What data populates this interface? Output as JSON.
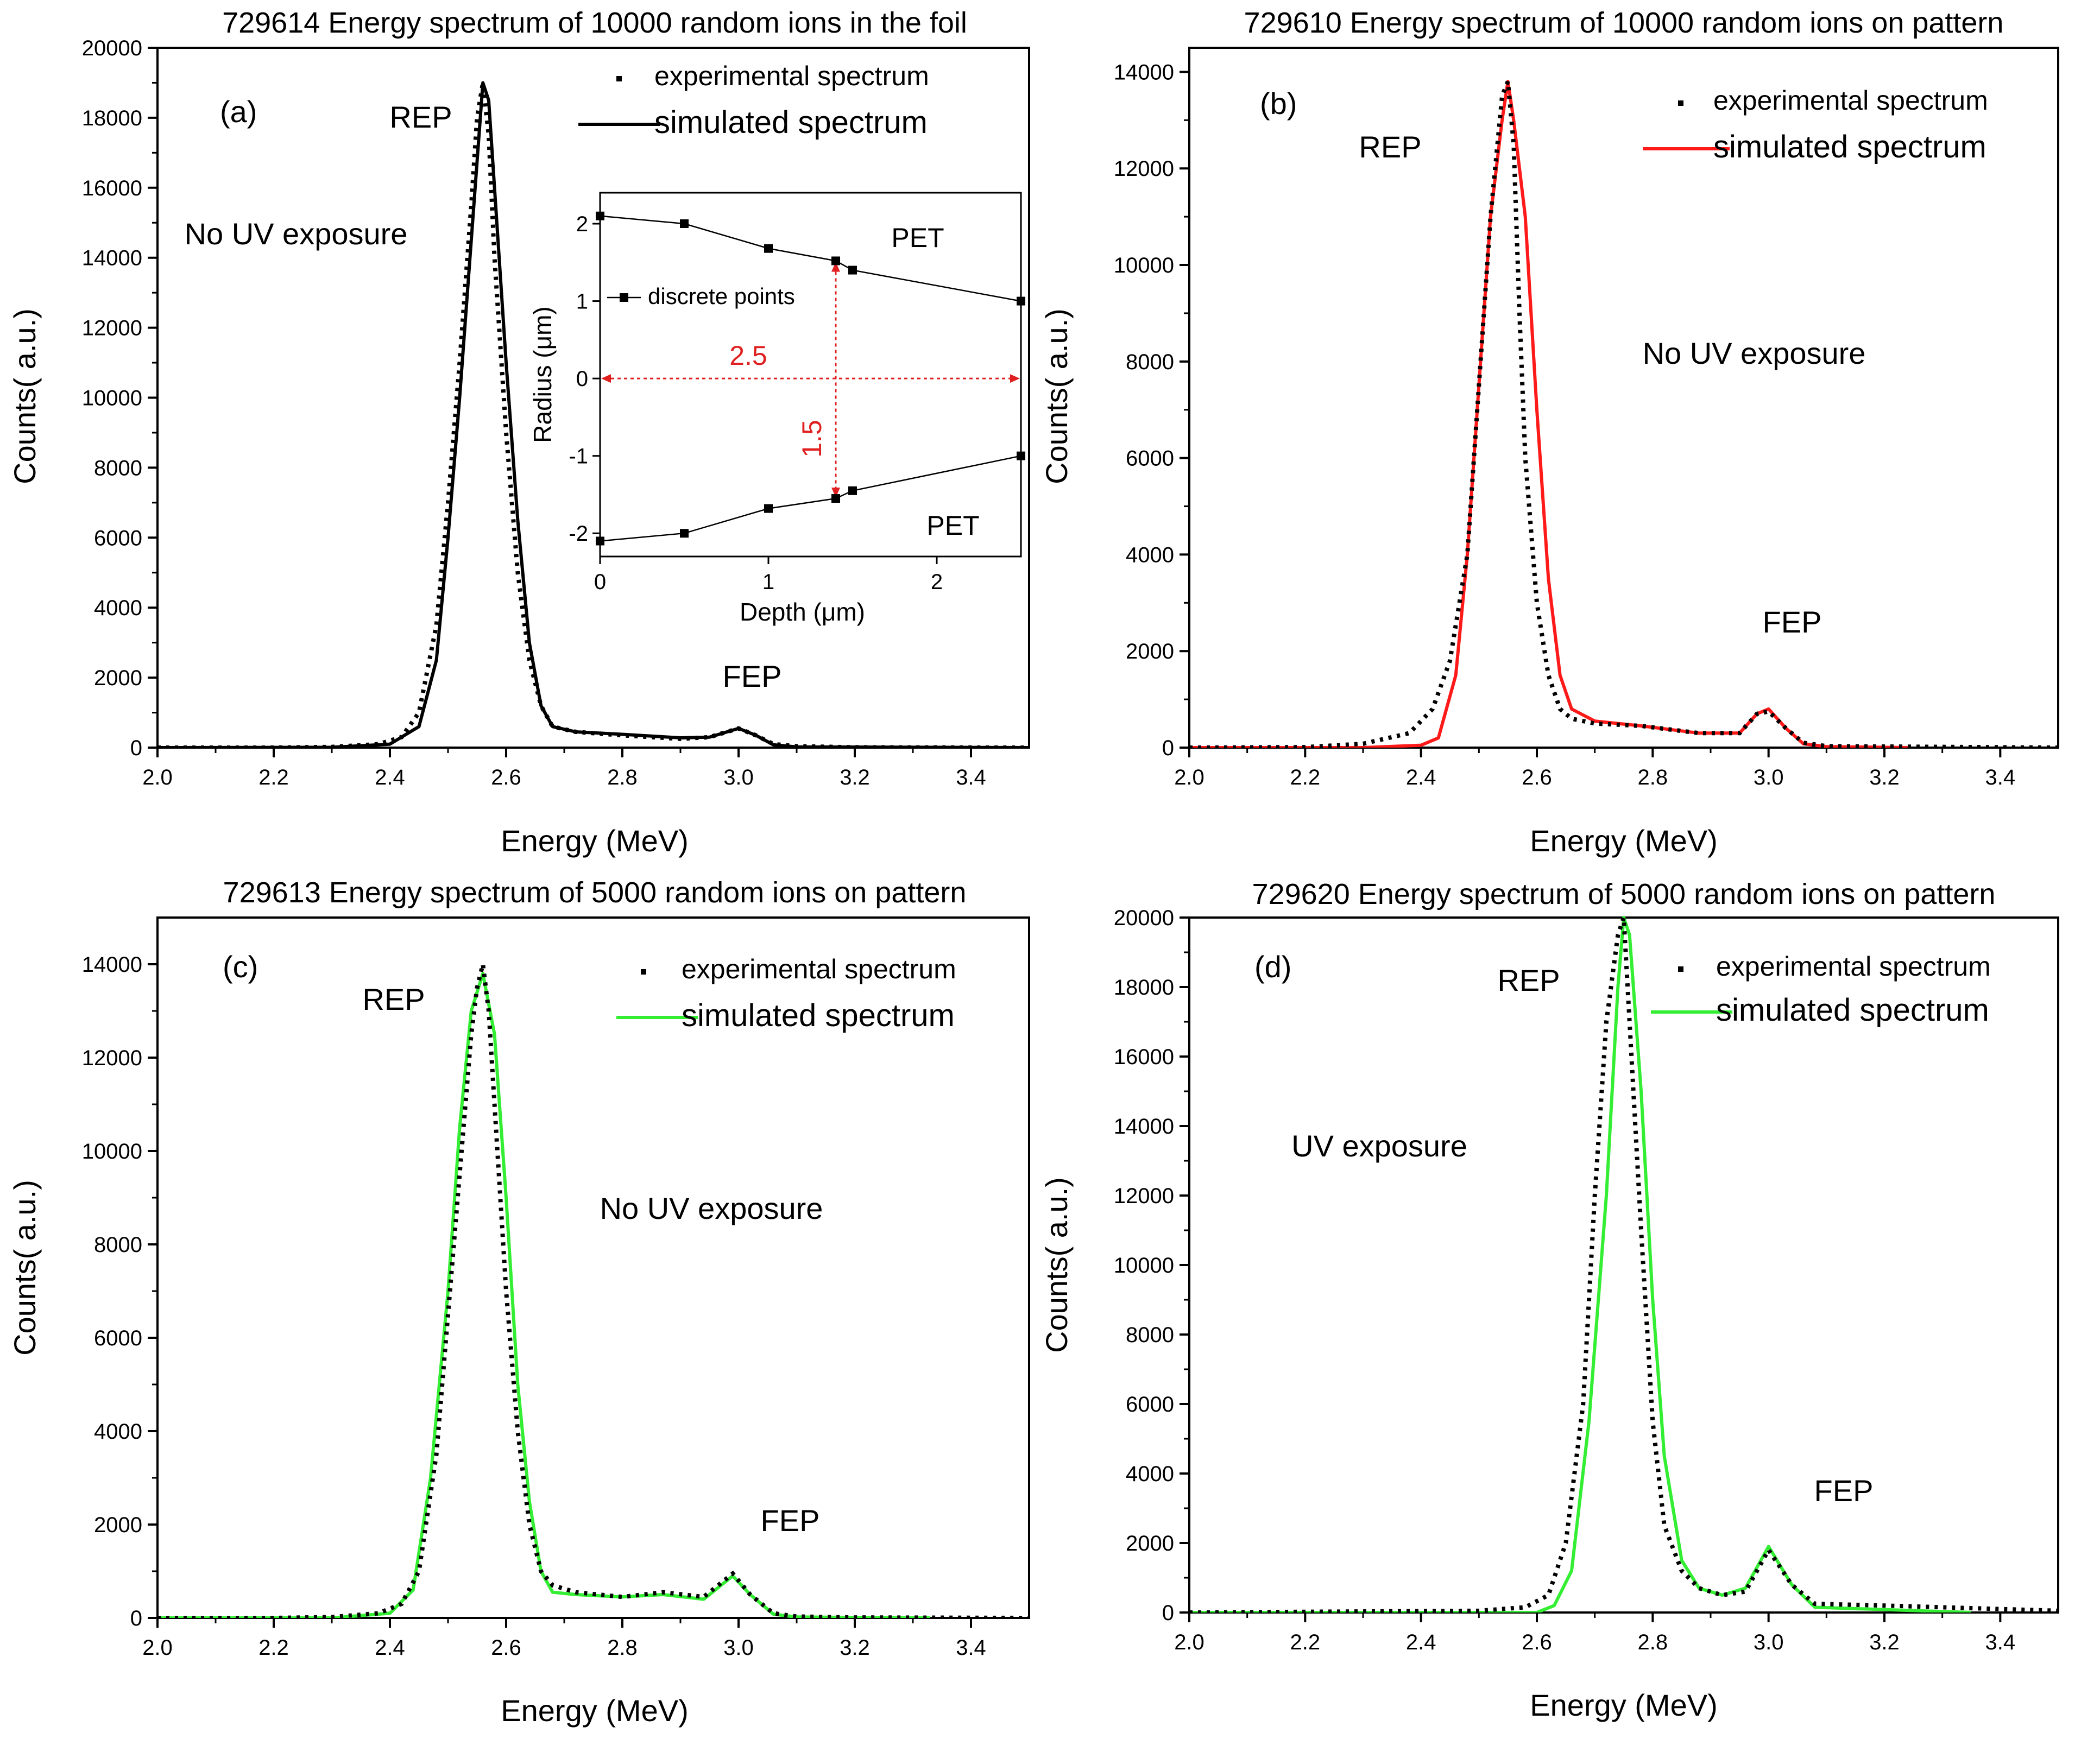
{
  "chart_data": [
    {
      "id": "a",
      "type": "line",
      "title": "729614 Energy spectrum of 10000 random ions in the foil",
      "xlabel": "Energy (MeV)",
      "ylabel": "Counts( a.u.)",
      "xlim": [
        2.0,
        3.5
      ],
      "ylim": [
        0,
        20000
      ],
      "xticks": [
        2.0,
        2.2,
        2.4,
        2.6,
        2.8,
        3.0,
        3.2,
        3.4
      ],
      "xtick_labels": [
        "2.0",
        "2.2",
        "2.4",
        "2.6",
        "2.8",
        "3.0",
        "3.2",
        "3.4"
      ],
      "yticks": [
        0,
        2000,
        4000,
        6000,
        8000,
        10000,
        12000,
        14000,
        16000,
        18000,
        20000
      ],
      "ytick_labels": [
        "0",
        "2000",
        "4000",
        "6000",
        "8000",
        "10000",
        "12000",
        "14000",
        "16000",
        "18000",
        "20000"
      ],
      "sim_color": "#000000",
      "legend": {
        "exp_label": "experimental spectrum",
        "sim_label": "simulated spectrum",
        "position": "top-right"
      },
      "annotations": {
        "panel_label": "(a)",
        "rep": "REP",
        "fep": "FEP",
        "condition": "No UV exposure"
      },
      "series": [
        {
          "name": "experimental spectrum",
          "style": "dotted",
          "x": [
            2.0,
            2.2,
            2.3,
            2.38,
            2.42,
            2.45,
            2.48,
            2.5,
            2.52,
            2.54,
            2.55,
            2.56,
            2.57,
            2.58,
            2.6,
            2.62,
            2.64,
            2.66,
            2.68,
            2.72,
            2.8,
            2.9,
            2.95,
            3.0,
            3.03,
            3.06,
            3.1,
            3.2,
            3.5
          ],
          "y": [
            0,
            0,
            20,
            100,
            300,
            1000,
            3500,
            7000,
            11000,
            15500,
            18000,
            19000,
            17500,
            14000,
            9000,
            5000,
            2500,
            1200,
            600,
            450,
            350,
            250,
            300,
            550,
            350,
            100,
            40,
            10,
            0
          ]
        },
        {
          "name": "simulated spectrum",
          "style": "solid",
          "x": [
            2.0,
            2.3,
            2.4,
            2.45,
            2.48,
            2.5,
            2.52,
            2.54,
            2.56,
            2.57,
            2.58,
            2.6,
            2.62,
            2.64,
            2.66,
            2.68,
            2.72,
            2.8,
            2.9,
            2.95,
            3.0,
            3.03,
            3.06,
            3.1,
            3.5
          ],
          "y": [
            0,
            10,
            100,
            600,
            2500,
            6000,
            10000,
            14500,
            19000,
            18500,
            16000,
            11000,
            6500,
            3000,
            1200,
            600,
            450,
            380,
            280,
            300,
            550,
            350,
            80,
            20,
            0
          ]
        }
      ]
    },
    {
      "id": "b",
      "type": "line",
      "title": "729610 Energy spectrum of 10000 random ions on pattern",
      "xlabel": "Energy (MeV)",
      "ylabel": "Counts( a.u.)",
      "xlim": [
        2.0,
        3.5
      ],
      "ylim": [
        0,
        14500
      ],
      "xticks": [
        2.0,
        2.2,
        2.4,
        2.6,
        2.8,
        3.0,
        3.2,
        3.4
      ],
      "xtick_labels": [
        "2.0",
        "2.2",
        "2.4",
        "2.6",
        "2.8",
        "3.0",
        "3.2",
        "3.4"
      ],
      "yticks": [
        0,
        2000,
        4000,
        6000,
        8000,
        10000,
        12000,
        14000
      ],
      "ytick_labels": [
        "0",
        "2000",
        "4000",
        "6000",
        "8000",
        "10000",
        "12000",
        "14000"
      ],
      "sim_color": "#ff1a1a",
      "legend": {
        "exp_label": "experimental spectrum",
        "sim_label": "simulated spectrum",
        "position": "top-right"
      },
      "annotations": {
        "panel_label": "(b)",
        "rep": "REP",
        "fep": "FEP",
        "condition": "No UV exposure"
      },
      "series": [
        {
          "name": "experimental spectrum",
          "style": "dotted",
          "x": [
            2.0,
            2.2,
            2.3,
            2.38,
            2.42,
            2.45,
            2.48,
            2.5,
            2.52,
            2.54,
            2.55,
            2.56,
            2.57,
            2.58,
            2.6,
            2.62,
            2.64,
            2.66,
            2.7,
            2.78,
            2.88,
            2.95,
            2.98,
            3.0,
            3.03,
            3.06,
            3.1,
            3.5
          ],
          "y": [
            0,
            10,
            80,
            300,
            800,
            1800,
            4000,
            7500,
            11000,
            13500,
            13800,
            12500,
            9000,
            6000,
            3000,
            1500,
            800,
            600,
            500,
            450,
            300,
            300,
            700,
            750,
            400,
            100,
            30,
            0
          ]
        },
        {
          "name": "simulated spectrum",
          "style": "solid",
          "x": [
            2.0,
            2.3,
            2.4,
            2.43,
            2.46,
            2.48,
            2.5,
            2.52,
            2.54,
            2.55,
            2.56,
            2.58,
            2.6,
            2.62,
            2.64,
            2.66,
            2.7,
            2.78,
            2.88,
            2.95,
            2.98,
            3.0,
            3.03,
            3.06,
            3.1,
            3.24
          ],
          "y": [
            0,
            0,
            50,
            200,
            1500,
            4000,
            7500,
            11000,
            13000,
            13800,
            13000,
            11000,
            7000,
            3500,
            1500,
            800,
            550,
            450,
            300,
            300,
            700,
            800,
            400,
            80,
            20,
            0
          ]
        }
      ]
    },
    {
      "id": "c",
      "type": "line",
      "title": "729613 Energy spectrum of 5000 random ions on pattern",
      "xlabel": "Energy (MeV)",
      "ylabel": "Counts( a.u.)",
      "xlim": [
        2.0,
        3.5
      ],
      "ylim": [
        0,
        15000
      ],
      "xticks": [
        2.0,
        2.2,
        2.4,
        2.6,
        2.8,
        3.0,
        3.2,
        3.4
      ],
      "xtick_labels": [
        "2.0",
        "2.2",
        "2.4",
        "2.6",
        "2.8",
        "3.0",
        "3.2",
        "3.4"
      ],
      "yticks": [
        0,
        2000,
        4000,
        6000,
        8000,
        10000,
        12000,
        14000
      ],
      "ytick_labels": [
        "0",
        "2000",
        "4000",
        "6000",
        "8000",
        "10000",
        "12000",
        "14000"
      ],
      "sim_color": "#33ee33",
      "legend": {
        "exp_label": "experimental spectrum",
        "sim_label": "simulated spectrum",
        "position": "top-right"
      },
      "annotations": {
        "panel_label": "(c)",
        "rep": "REP",
        "fep": "FEP",
        "condition": "No UV exposure"
      },
      "series": [
        {
          "name": "experimental spectrum",
          "style": "dotted",
          "x": [
            2.0,
            2.2,
            2.3,
            2.38,
            2.42,
            2.45,
            2.48,
            2.5,
            2.52,
            2.54,
            2.55,
            2.56,
            2.57,
            2.58,
            2.6,
            2.62,
            2.64,
            2.66,
            2.68,
            2.72,
            2.8,
            2.87,
            2.94,
            2.99,
            3.02,
            3.06,
            3.1,
            3.2,
            3.5
          ],
          "y": [
            0,
            0,
            20,
            100,
            300,
            1000,
            3500,
            6500,
            9500,
            12500,
            13500,
            14000,
            13000,
            11000,
            7000,
            4000,
            2000,
            1000,
            700,
            550,
            450,
            550,
            450,
            950,
            500,
            100,
            30,
            10,
            0
          ]
        },
        {
          "name": "simulated spectrum",
          "style": "solid",
          "x": [
            2.0,
            2.3,
            2.4,
            2.44,
            2.47,
            2.5,
            2.52,
            2.54,
            2.56,
            2.58,
            2.6,
            2.62,
            2.64,
            2.66,
            2.68,
            2.72,
            2.8,
            2.87,
            2.94,
            2.99,
            3.02,
            3.06,
            3.1,
            3.33
          ],
          "y": [
            0,
            0,
            100,
            600,
            3000,
            7000,
            10500,
            13000,
            13800,
            12500,
            9000,
            5000,
            2500,
            1000,
            550,
            500,
            450,
            500,
            400,
            900,
            500,
            80,
            20,
            0
          ]
        }
      ]
    },
    {
      "id": "d",
      "type": "line",
      "title": "729620 Energy spectrum of 5000 random ions on pattern",
      "xlabel": "Energy (MeV)",
      "ylabel": "Counts( a.u.)",
      "xlim": [
        2.0,
        3.5
      ],
      "ylim": [
        0,
        20000
      ],
      "xticks": [
        2.0,
        2.2,
        2.4,
        2.6,
        2.8,
        3.0,
        3.2,
        3.4
      ],
      "xtick_labels": [
        "2.0",
        "2.2",
        "2.4",
        "2.6",
        "2.8",
        "3.0",
        "3.2",
        "3.4"
      ],
      "yticks": [
        0,
        2000,
        4000,
        6000,
        8000,
        10000,
        12000,
        14000,
        16000,
        18000,
        20000
      ],
      "ytick_labels": [
        "0",
        "2000",
        "4000",
        "6000",
        "8000",
        "10000",
        "12000",
        "14000",
        "16000",
        "18000",
        "20000"
      ],
      "sim_color": "#33ee33",
      "legend": {
        "exp_label": "experimental spectrum",
        "sim_label": "simulated spectrum",
        "position": "top-right"
      },
      "annotations": {
        "panel_label": "(d)",
        "rep": "REP",
        "fep": "FEP",
        "condition": "UV exposure"
      },
      "series": [
        {
          "name": "experimental spectrum",
          "style": "dotted",
          "x": [
            2.0,
            2.5,
            2.58,
            2.62,
            2.65,
            2.68,
            2.7,
            2.72,
            2.74,
            2.75,
            2.76,
            2.78,
            2.8,
            2.82,
            2.85,
            2.88,
            2.92,
            2.96,
            3.0,
            3.04,
            3.08,
            3.2,
            3.5
          ],
          "y": [
            0,
            50,
            150,
            500,
            2000,
            6000,
            12000,
            17000,
            19500,
            20000,
            17000,
            11000,
            5500,
            2500,
            1200,
            700,
            500,
            600,
            1800,
            800,
            250,
            200,
            50
          ]
        },
        {
          "name": "simulated spectrum",
          "style": "solid",
          "x": [
            2.0,
            2.6,
            2.63,
            2.66,
            2.69,
            2.72,
            2.74,
            2.75,
            2.76,
            2.78,
            2.8,
            2.82,
            2.85,
            2.88,
            2.92,
            2.96,
            3.0,
            3.04,
            3.08,
            3.35
          ],
          "y": [
            0,
            0,
            200,
            1200,
            5500,
            12000,
            18000,
            20000,
            19500,
            15000,
            9000,
            4500,
            1500,
            700,
            500,
            700,
            1900,
            800,
            150,
            0
          ]
        }
      ]
    }
  ],
  "inset": {
    "xlabel": "Depth (μm)",
    "ylabel": "Radius (μm)",
    "xlim": [
      0,
      2.5
    ],
    "ylim": [
      -2.3,
      2.4
    ],
    "xticks": [
      0,
      1,
      2
    ],
    "xtick_labels": [
      "0",
      "1",
      "2"
    ],
    "yticks": [
      -2,
      -1,
      0,
      1,
      2
    ],
    "ytick_labels": [
      "-2",
      "-1",
      "0",
      "1",
      "2"
    ],
    "legend_label": "discrete points",
    "upper_label": "PET",
    "lower_label": "PET",
    "arrow_h_label": "2.5",
    "arrow_v_label": "1.5",
    "arrow_color": "#e02020",
    "upper_points": {
      "x": [
        0,
        0.5,
        1.0,
        1.4,
        1.5,
        2.5
      ],
      "y": [
        2.1,
        2.0,
        1.68,
        1.52,
        1.4,
        1.0
      ]
    },
    "lower_points": {
      "x": [
        0,
        0.5,
        1.0,
        1.4,
        1.5,
        2.5
      ],
      "y": [
        -2.1,
        -2.0,
        -1.68,
        -1.55,
        -1.45,
        -1.0
      ]
    }
  }
}
